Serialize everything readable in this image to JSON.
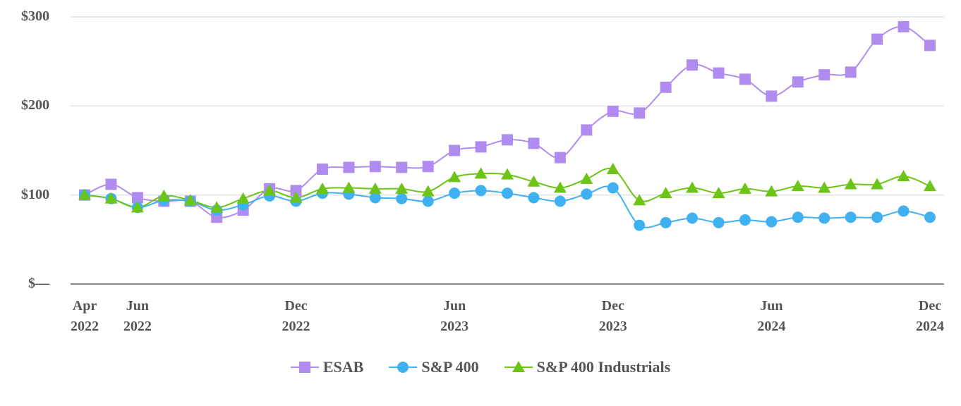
{
  "chart_data": {
    "type": "line",
    "categories": [
      "Apr 2022",
      null,
      "Jun 2022",
      null,
      null,
      null,
      null,
      null,
      "Dec 2022",
      null,
      null,
      null,
      null,
      null,
      "Jun 2023",
      null,
      null,
      null,
      null,
      null,
      "Dec 2023",
      null,
      null,
      null,
      null,
      null,
      "Jun 2024",
      null,
      null,
      null,
      null,
      null,
      "Dec 2024"
    ],
    "series": [
      {
        "name": "ESAB",
        "color": "#b18cf0",
        "marker": "square",
        "values": [
          100,
          112,
          97,
          93,
          93,
          75,
          83,
          107,
          105,
          129,
          131,
          132,
          131,
          132,
          150,
          154,
          162,
          158,
          142,
          173,
          194,
          192,
          221,
          246,
          237,
          230,
          211,
          227,
          235,
          238,
          275,
          289,
          268
        ]
      },
      {
        "name": "S&P 400",
        "color": "#3fb0f0",
        "marker": "circle",
        "values": [
          100,
          96,
          86,
          94,
          93,
          83,
          89,
          99,
          93,
          102,
          101,
          97,
          96,
          93,
          102,
          105,
          102,
          97,
          93,
          101,
          108,
          66,
          69,
          74,
          69,
          72,
          70,
          75,
          74,
          75,
          75,
          82,
          75
        ]
      },
      {
        "name": "S&P 400 Industrials",
        "color": "#6cc417",
        "marker": "triangle",
        "values": [
          100,
          96,
          86,
          99,
          94,
          86,
          96,
          105,
          97,
          107,
          108,
          107,
          107,
          104,
          120,
          124,
          123,
          115,
          108,
          118,
          129,
          94,
          102,
          108,
          102,
          107,
          104,
          110,
          108,
          112,
          112,
          121,
          110
        ]
      }
    ],
    "ylim": [
      0,
      300
    ],
    "yticks": [
      {
        "value": 0,
        "label": "$—"
      },
      {
        "value": 100,
        "label": "$100"
      },
      {
        "value": 200,
        "label": "$200"
      },
      {
        "value": 300,
        "label": "$300"
      }
    ],
    "grid": true,
    "legend": "bottom"
  }
}
